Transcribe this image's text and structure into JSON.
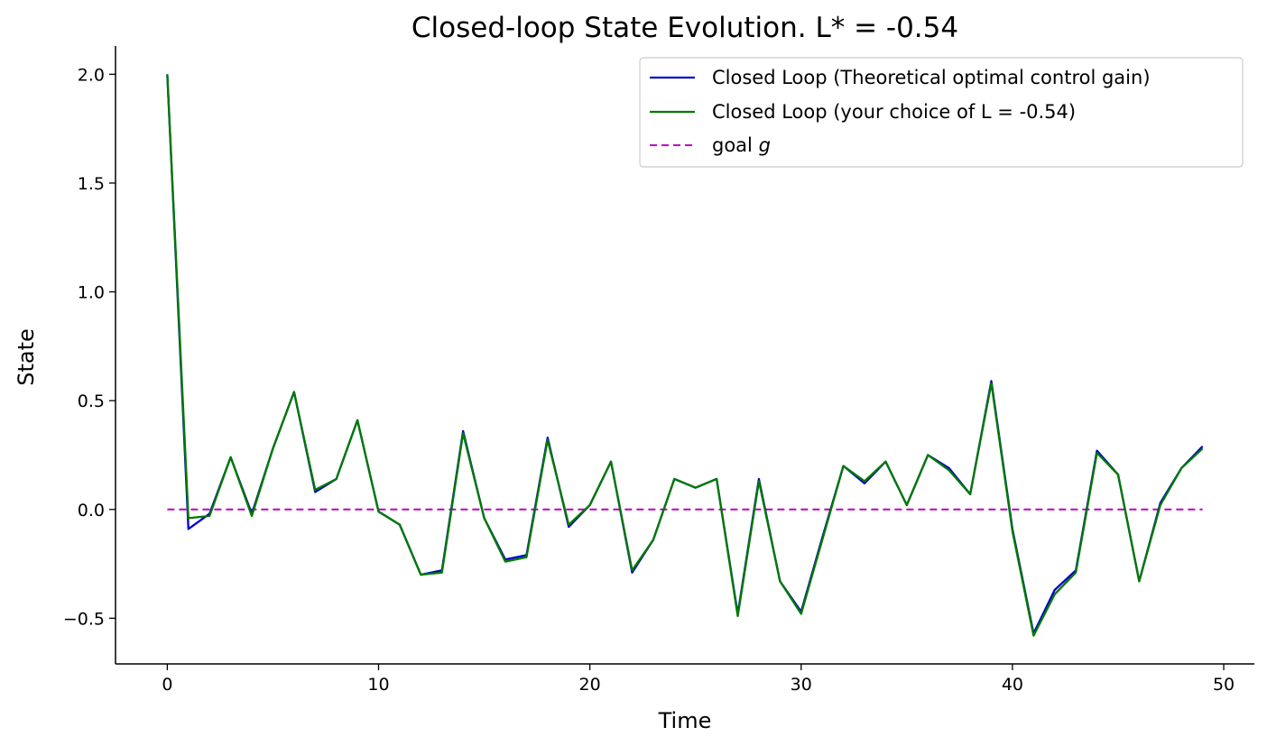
{
  "chart_data": {
    "type": "line",
    "title": "Closed-loop State Evolution. L* = -0.54",
    "xlabel": "Time",
    "ylabel": "State",
    "xlim": [
      -2.45,
      51.45
    ],
    "ylim": [
      -0.71,
      2.13
    ],
    "xticks": [
      0,
      10,
      20,
      30,
      40,
      50
    ],
    "yticks": [
      -0.5,
      0.0,
      0.5,
      1.0,
      1.5,
      2.0
    ],
    "xtick_labels": [
      "0",
      "10",
      "20",
      "30",
      "40",
      "50"
    ],
    "ytick_labels": [
      "−0.5",
      "0.0",
      "0.5",
      "1.0",
      "1.5",
      "2.0"
    ],
    "grid": false,
    "legend_position": "top-right",
    "x": [
      0,
      1,
      2,
      3,
      4,
      5,
      6,
      7,
      8,
      9,
      10,
      11,
      12,
      13,
      14,
      15,
      16,
      17,
      18,
      19,
      20,
      21,
      22,
      23,
      24,
      25,
      26,
      27,
      28,
      29,
      30,
      31,
      32,
      33,
      34,
      35,
      36,
      37,
      38,
      39,
      40,
      41,
      42,
      43,
      44,
      45,
      46,
      47,
      48,
      49
    ],
    "series": [
      {
        "name": "Closed Loop (Theoretical optimal control gain)",
        "color": "#0000cc",
        "style": "solid",
        "values": [
          2.0,
          -0.09,
          -0.02,
          0.24,
          -0.02,
          0.28,
          0.54,
          0.08,
          0.14,
          0.41,
          -0.01,
          -0.07,
          -0.3,
          -0.28,
          0.36,
          -0.04,
          -0.23,
          -0.21,
          0.33,
          -0.08,
          0.02,
          0.22,
          -0.29,
          -0.14,
          0.14,
          0.1,
          0.14,
          -0.48,
          0.14,
          -0.33,
          -0.47,
          -0.13,
          0.2,
          0.12,
          0.22,
          0.02,
          0.25,
          0.19,
          0.07,
          0.59,
          -0.09,
          -0.57,
          -0.37,
          -0.28,
          0.27,
          0.16,
          -0.33,
          0.03,
          0.19,
          0.29
        ]
      },
      {
        "name": "Closed Loop (your choice of L = -0.54)",
        "color": "#007a00",
        "style": "solid",
        "values": [
          2.0,
          -0.04,
          -0.03,
          0.24,
          -0.03,
          0.28,
          0.54,
          0.09,
          0.14,
          0.41,
          -0.01,
          -0.07,
          -0.3,
          -0.29,
          0.35,
          -0.04,
          -0.24,
          -0.22,
          0.32,
          -0.07,
          0.02,
          0.22,
          -0.28,
          -0.14,
          0.14,
          0.1,
          0.14,
          -0.49,
          0.13,
          -0.33,
          -0.48,
          -0.14,
          0.2,
          0.13,
          0.22,
          0.02,
          0.25,
          0.18,
          0.07,
          0.58,
          -0.1,
          -0.58,
          -0.39,
          -0.29,
          0.26,
          0.16,
          -0.33,
          0.02,
          0.19,
          0.28
        ]
      },
      {
        "name": "goal g",
        "color": "#bf00bf",
        "style": "dashed",
        "x_range": [
          0,
          49
        ],
        "constant": 0.0
      }
    ],
    "legend": {
      "entries": [
        {
          "label": "Closed Loop (Theoretical optimal control gain)",
          "color": "#0000cc",
          "style": "solid"
        },
        {
          "label": "Closed Loop (your choice of L = -0.54)",
          "color": "#007a00",
          "style": "solid"
        },
        {
          "label_prefix": "goal ",
          "label_italic": "g",
          "color": "#bf00bf",
          "style": "dashed"
        }
      ]
    }
  }
}
